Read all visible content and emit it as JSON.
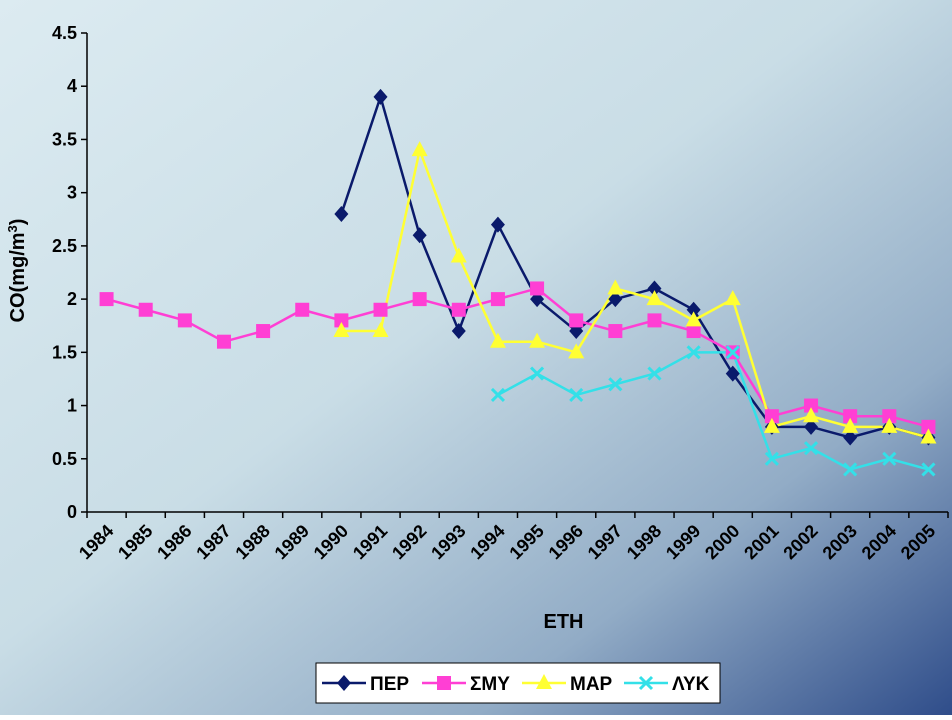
{
  "chart_data": {
    "type": "line",
    "title": "",
    "xlabel": "ΕΤΗ",
    "ylabel": "CO(mg/m3)",
    "ylabel_parts": {
      "base": "CO(mg/m",
      "sup": "3",
      "close": ")"
    },
    "ylim": [
      0,
      4.5
    ],
    "yticks": [
      "0",
      "0.5",
      "1",
      "1.5",
      "2",
      "2.5",
      "3",
      "3.5",
      "4",
      "4.5"
    ],
    "yticks_values": [
      0,
      0.5,
      1,
      1.5,
      2,
      2.5,
      3,
      3.5,
      4,
      4.5
    ],
    "categories": [
      "1984",
      "1985",
      "1986",
      "1987",
      "1988",
      "1989",
      "1990",
      "1991",
      "1992",
      "1993",
      "1994",
      "1995",
      "1996",
      "1997",
      "1998",
      "1999",
      "2000",
      "2001",
      "2002",
      "2003",
      "2004",
      "2005"
    ],
    "grid": false,
    "legend_position": "bottom",
    "series": [
      {
        "name": "ΠΕΡ",
        "color": "#0a1a6b",
        "marker": "diamond",
        "values": [
          null,
          null,
          null,
          null,
          null,
          null,
          2.8,
          3.9,
          2.6,
          1.7,
          2.7,
          2.0,
          1.7,
          2.0,
          2.1,
          1.9,
          1.3,
          0.8,
          0.8,
          0.7,
          0.8,
          0.7
        ]
      },
      {
        "name": "ΣΜΥ",
        "color": "#ff3fd4",
        "marker": "square",
        "values": [
          2.0,
          1.9,
          1.8,
          1.6,
          1.7,
          1.9,
          1.8,
          1.9,
          2.0,
          1.9,
          2.0,
          2.1,
          1.8,
          1.7,
          1.8,
          1.7,
          1.5,
          0.9,
          1.0,
          0.9,
          0.9,
          0.8
        ]
      },
      {
        "name": "ΜΑΡ",
        "color": "#ffff33",
        "marker": "triangle",
        "values": [
          null,
          null,
          null,
          null,
          null,
          null,
          1.7,
          1.7,
          3.4,
          2.4,
          1.6,
          1.6,
          1.5,
          2.1,
          2.0,
          1.8,
          2.0,
          0.8,
          0.9,
          0.8,
          0.8,
          0.7
        ]
      },
      {
        "name": "ΛΥΚ",
        "color": "#33e0e8",
        "marker": "x",
        "values": [
          null,
          null,
          null,
          null,
          null,
          null,
          null,
          null,
          null,
          null,
          1.1,
          1.3,
          1.1,
          1.2,
          1.3,
          1.5,
          1.5,
          0.5,
          0.6,
          0.4,
          0.5,
          0.4
        ]
      }
    ]
  }
}
